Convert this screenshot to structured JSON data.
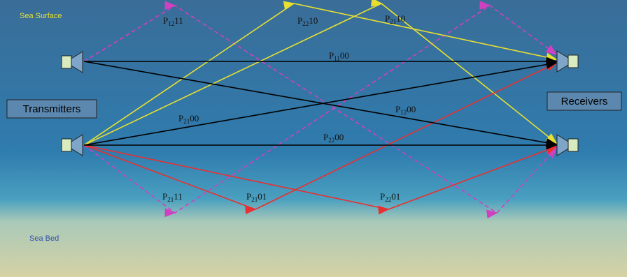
{
  "labels": {
    "sea_surface": "Sea Surface",
    "sea_bed": "Sea Bed",
    "transmitters": "Transmitters",
    "receivers": "Receivers"
  },
  "paths": [
    {
      "base": "P",
      "sub": "12",
      "suffix": "11"
    },
    {
      "base": "P",
      "sub": "22",
      "suffix": "10"
    },
    {
      "base": "P",
      "sub": "21",
      "suffix": "10"
    },
    {
      "base": "P",
      "sub": "11",
      "suffix": "00"
    },
    {
      "base": "P",
      "sub": "21",
      "suffix": "00"
    },
    {
      "base": "P",
      "sub": "12",
      "suffix": "00"
    },
    {
      "base": "P",
      "sub": "22",
      "suffix": "00"
    },
    {
      "base": "P",
      "sub": "21",
      "suffix": "11"
    },
    {
      "base": "P",
      "sub": "21",
      "suffix": "01"
    },
    {
      "base": "P",
      "sub": "22",
      "suffix": "01"
    }
  ]
}
